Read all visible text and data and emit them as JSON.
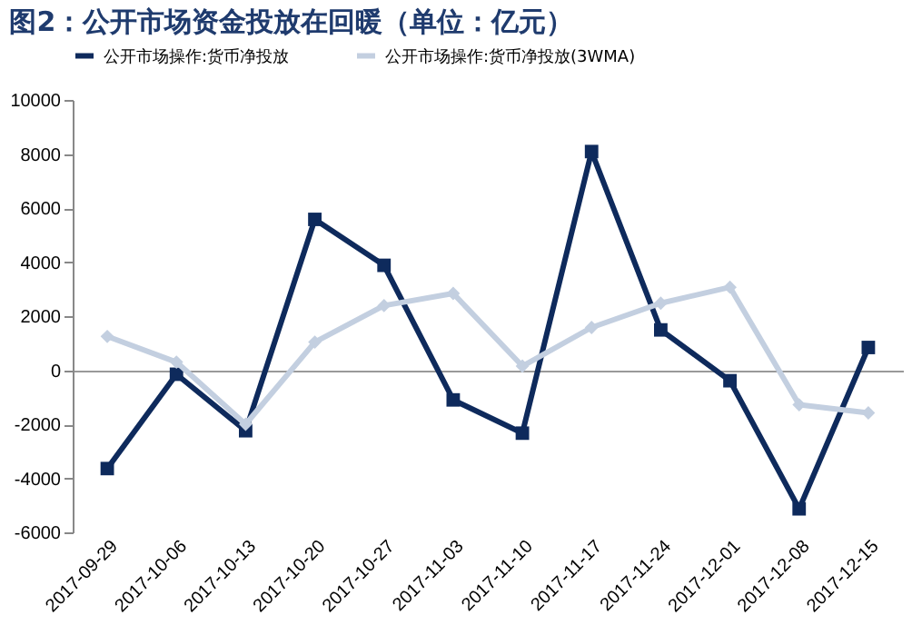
{
  "chart_data": {
    "type": "line",
    "title": "图2：公开市场资金投放在回暖（单位：亿元）",
    "categories": [
      "2017-09-29",
      "2017-10-06",
      "2017-10-13",
      "2017-10-20",
      "2017-10-27",
      "2017-11-03",
      "2017-11-10",
      "2017-11-17",
      "2017-11-24",
      "2017-12-01",
      "2017-12-08",
      "2017-12-15"
    ],
    "series": [
      {
        "name": "公开市场操作:货币净投放",
        "color": "#0e2a5c",
        "marker": "square",
        "values": [
          -3640,
          -150,
          -2240,
          5580,
          3880,
          -1100,
          -2330,
          8090,
          1490,
          -390,
          -5130,
          840
        ]
      },
      {
        "name": "公开市场操作:货币净投放(3WMA)",
        "color": "#c3cfe0",
        "marker": "diamond",
        "values": [
          1250,
          300,
          -2000,
          1040,
          2390,
          2840,
          150,
          1580,
          2480,
          3070,
          -1280,
          -1580
        ]
      }
    ],
    "ylim": [
      -6000,
      10000
    ],
    "yticks": [
      -6000,
      -4000,
      -2000,
      0,
      2000,
      4000,
      6000,
      8000,
      10000
    ],
    "legend": "top",
    "line_style": "solid"
  }
}
